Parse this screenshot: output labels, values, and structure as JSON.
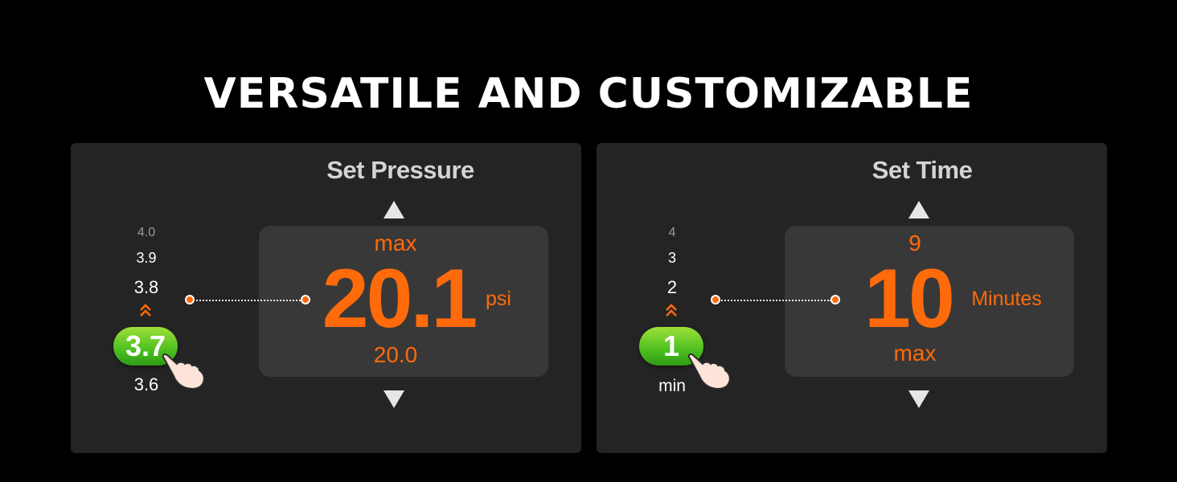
{
  "headline": "VERSATILE AND CUSTOMIZABLE",
  "colors": {
    "accent": "#ff6a0a",
    "pill_green": "#4cbf1f",
    "panel_bg": "#242424",
    "display_bg": "#383838"
  },
  "pressure_panel": {
    "title": "Set Pressure",
    "scale": [
      "4.0",
      "3.9",
      "3.8",
      "3.6"
    ],
    "selected": "3.7",
    "display": {
      "top_label": "max",
      "value": "20.1",
      "unit": "psi",
      "bottom_value": "20.0"
    }
  },
  "time_panel": {
    "title": "Set Time",
    "scale": [
      "4",
      "3",
      "2"
    ],
    "selected": "1",
    "selected_caption": "min",
    "display": {
      "top_value": "9",
      "value": "10",
      "unit": "Minutes",
      "bottom_label": "max"
    }
  },
  "icons": [
    "arrow-up-icon",
    "arrow-down-icon",
    "double-chevron-up-icon",
    "pointing-hand-icon"
  ]
}
